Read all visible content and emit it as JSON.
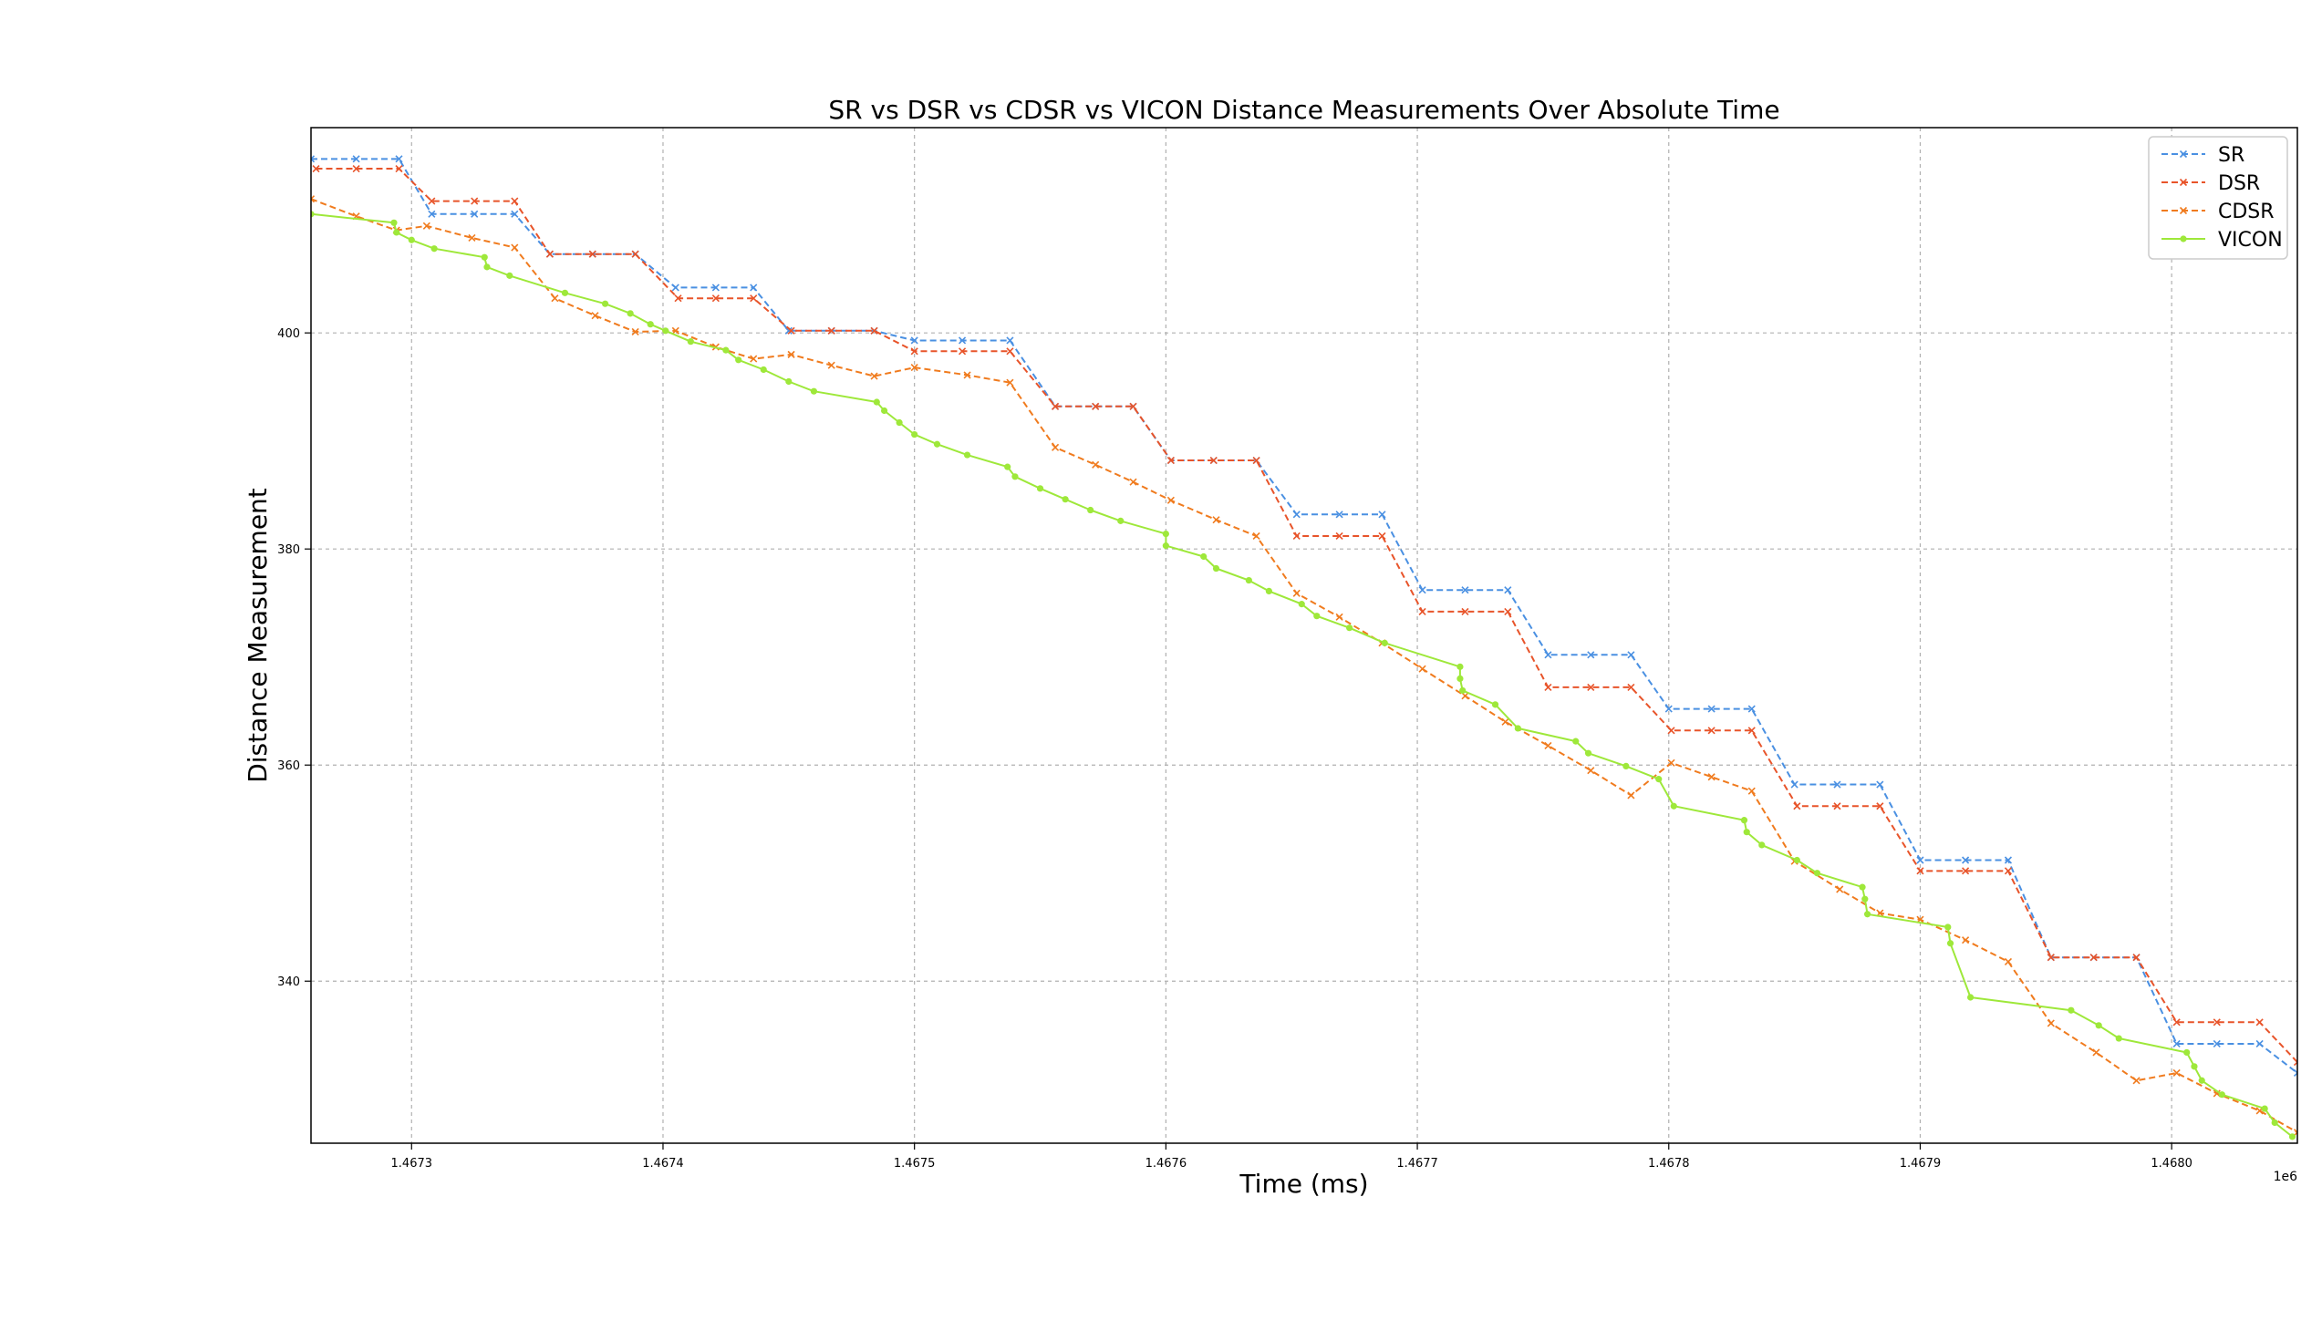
{
  "chart_data": {
    "type": "line",
    "title": "SR vs DSR vs CDSR vs VICON Distance Measurements Over Absolute Time",
    "xlabel": "Time (ms)",
    "ylabel": "Distance Measurement",
    "x_offset_label": "1e6",
    "xlim": [
      1.46726,
      1.46805
    ],
    "ylim": [
      325,
      419
    ],
    "x_ticks": [
      1.4673,
      1.4674,
      1.4675,
      1.4676,
      1.4677,
      1.4678,
      1.4679,
      1.468
    ],
    "x_tick_labels": [
      "1.4673",
      "1.4674",
      "1.4675",
      "1.4676",
      "1.4677",
      "1.4678",
      "1.4679",
      "1.4680"
    ],
    "y_ticks": [
      340,
      360,
      380,
      400
    ],
    "y_tick_labels": [
      "340",
      "360",
      "380",
      "400"
    ],
    "grid": true,
    "legend_position": "top-right",
    "series": [
      {
        "name": "SR",
        "color": "#4a90e2",
        "linestyle": "dashed",
        "marker": "x",
        "points": [
          [
            1.46726,
            416.1
          ],
          [
            1.467278,
            416.1
          ],
          [
            1.467295,
            416.1
          ],
          [
            1.467308,
            411.0
          ],
          [
            1.467325,
            411.0
          ],
          [
            1.467341,
            411.0
          ],
          [
            1.467355,
            407.3
          ],
          [
            1.467372,
            407.3
          ],
          [
            1.467389,
            407.3
          ],
          [
            1.467405,
            404.2
          ],
          [
            1.467421,
            404.2
          ],
          [
            1.467436,
            404.2
          ],
          [
            1.46745,
            400.2
          ],
          [
            1.467467,
            400.2
          ],
          [
            1.467484,
            400.2
          ],
          [
            1.4675,
            399.3
          ],
          [
            1.467519,
            399.3
          ],
          [
            1.467538,
            399.3
          ],
          [
            1.467556,
            393.2
          ],
          [
            1.467572,
            393.2
          ],
          [
            1.467587,
            393.2
          ],
          [
            1.467602,
            388.2
          ],
          [
            1.467619,
            388.2
          ],
          [
            1.467636,
            388.2
          ],
          [
            1.467652,
            383.2
          ],
          [
            1.467669,
            383.2
          ],
          [
            1.467686,
            383.2
          ],
          [
            1.467702,
            376.2
          ],
          [
            1.467719,
            376.2
          ],
          [
            1.467736,
            376.2
          ],
          [
            1.467752,
            370.2
          ],
          [
            1.467769,
            370.2
          ],
          [
            1.467785,
            370.2
          ],
          [
            1.4678,
            365.2
          ],
          [
            1.467817,
            365.2
          ],
          [
            1.467833,
            365.2
          ],
          [
            1.46785,
            358.2
          ],
          [
            1.467867,
            358.2
          ],
          [
            1.467884,
            358.2
          ],
          [
            1.4679,
            351.2
          ],
          [
            1.467918,
            351.2
          ],
          [
            1.467935,
            351.2
          ],
          [
            1.467952,
            342.2
          ],
          [
            1.467969,
            342.2
          ],
          [
            1.467986,
            342.2
          ],
          [
            1.468002,
            334.2
          ],
          [
            1.468018,
            334.2
          ],
          [
            1.468035,
            334.2
          ],
          [
            1.46805,
            331.5
          ]
        ]
      },
      {
        "name": "DSR",
        "color": "#e8542a",
        "linestyle": "dashed",
        "marker": "x",
        "points": [
          [
            1.467262,
            415.2
          ],
          [
            1.467278,
            415.2
          ],
          [
            1.467295,
            415.2
          ],
          [
            1.467308,
            412.2
          ],
          [
            1.467325,
            412.2
          ],
          [
            1.467341,
            412.2
          ],
          [
            1.467355,
            407.3
          ],
          [
            1.467372,
            407.3
          ],
          [
            1.467389,
            407.3
          ],
          [
            1.467406,
            403.2
          ],
          [
            1.467421,
            403.2
          ],
          [
            1.467436,
            403.2
          ],
          [
            1.467451,
            400.2
          ],
          [
            1.467467,
            400.2
          ],
          [
            1.467484,
            400.2
          ],
          [
            1.4675,
            398.3
          ],
          [
            1.467519,
            398.3
          ],
          [
            1.467538,
            398.3
          ],
          [
            1.467556,
            393.2
          ],
          [
            1.467572,
            393.2
          ],
          [
            1.467587,
            393.2
          ],
          [
            1.467602,
            388.2
          ],
          [
            1.467619,
            388.2
          ],
          [
            1.467636,
            388.2
          ],
          [
            1.467652,
            381.2
          ],
          [
            1.467669,
            381.2
          ],
          [
            1.467686,
            381.2
          ],
          [
            1.467702,
            374.2
          ],
          [
            1.467719,
            374.2
          ],
          [
            1.467736,
            374.2
          ],
          [
            1.467752,
            367.2
          ],
          [
            1.467769,
            367.2
          ],
          [
            1.467785,
            367.2
          ],
          [
            1.467801,
            363.2
          ],
          [
            1.467817,
            363.2
          ],
          [
            1.467833,
            363.2
          ],
          [
            1.467851,
            356.2
          ],
          [
            1.467867,
            356.2
          ],
          [
            1.467884,
            356.2
          ],
          [
            1.4679,
            350.2
          ],
          [
            1.467918,
            350.2
          ],
          [
            1.467935,
            350.2
          ],
          [
            1.467952,
            342.2
          ],
          [
            1.467969,
            342.2
          ],
          [
            1.467986,
            342.2
          ],
          [
            1.468002,
            336.2
          ],
          [
            1.468018,
            336.2
          ],
          [
            1.468035,
            336.2
          ],
          [
            1.46805,
            332.5
          ]
        ]
      },
      {
        "name": "CDSR",
        "color": "#f07b1e",
        "linestyle": "dashed",
        "marker": "x",
        "points": [
          [
            1.46726,
            412.4
          ],
          [
            1.467278,
            410.8
          ],
          [
            1.467294,
            409.5
          ],
          [
            1.467306,
            409.9
          ],
          [
            1.467324,
            408.8
          ],
          [
            1.467341,
            407.9
          ],
          [
            1.467357,
            403.2
          ],
          [
            1.467373,
            401.6
          ],
          [
            1.467389,
            400.1
          ],
          [
            1.467405,
            400.2
          ],
          [
            1.467421,
            398.7
          ],
          [
            1.467436,
            397.6
          ],
          [
            1.467451,
            398.0
          ],
          [
            1.467467,
            397.0
          ],
          [
            1.467484,
            396.0
          ],
          [
            1.4675,
            396.8
          ],
          [
            1.467521,
            396.1
          ],
          [
            1.467538,
            395.4
          ],
          [
            1.467556,
            389.4
          ],
          [
            1.467572,
            387.8
          ],
          [
            1.467587,
            386.2
          ],
          [
            1.467602,
            384.5
          ],
          [
            1.46762,
            382.7
          ],
          [
            1.467636,
            381.2
          ],
          [
            1.467652,
            375.9
          ],
          [
            1.467669,
            373.7
          ],
          [
            1.467686,
            371.3
          ],
          [
            1.467702,
            368.9
          ],
          [
            1.467719,
            366.4
          ],
          [
            1.467735,
            364.0
          ],
          [
            1.467752,
            361.8
          ],
          [
            1.467769,
            359.5
          ],
          [
            1.467785,
            357.2
          ],
          [
            1.467801,
            360.2
          ],
          [
            1.467817,
            358.9
          ],
          [
            1.467833,
            357.6
          ],
          [
            1.46785,
            351.1
          ],
          [
            1.467868,
            348.5
          ],
          [
            1.467884,
            346.3
          ],
          [
            1.4679,
            345.7
          ],
          [
            1.467918,
            343.8
          ],
          [
            1.467935,
            341.8
          ],
          [
            1.467952,
            336.1
          ],
          [
            1.46797,
            333.4
          ],
          [
            1.467986,
            330.8
          ],
          [
            1.468002,
            331.5
          ],
          [
            1.468018,
            329.6
          ],
          [
            1.468035,
            328.0
          ],
          [
            1.46805,
            326.0
          ]
        ]
      },
      {
        "name": "VICON",
        "color": "#9ee83a",
        "linestyle": "solid",
        "marker": "o",
        "points": [
          [
            1.46726,
            411.0
          ],
          [
            1.467293,
            410.2
          ],
          [
            1.467294,
            409.3
          ],
          [
            1.4673,
            408.6
          ],
          [
            1.467309,
            407.8
          ],
          [
            1.467329,
            407.0
          ],
          [
            1.46733,
            406.1
          ],
          [
            1.467339,
            405.3
          ],
          [
            1.467361,
            403.7
          ],
          [
            1.467377,
            402.7
          ],
          [
            1.467387,
            401.8
          ],
          [
            1.467395,
            400.8
          ],
          [
            1.467401,
            400.2
          ],
          [
            1.467411,
            399.2
          ],
          [
            1.467425,
            398.4
          ],
          [
            1.46743,
            397.5
          ],
          [
            1.46744,
            396.6
          ],
          [
            1.46745,
            395.5
          ],
          [
            1.46746,
            394.6
          ],
          [
            1.467485,
            393.6
          ],
          [
            1.467488,
            392.8
          ],
          [
            1.467494,
            391.7
          ],
          [
            1.4675,
            390.6
          ],
          [
            1.467509,
            389.7
          ],
          [
            1.467521,
            388.7
          ],
          [
            1.467537,
            387.6
          ],
          [
            1.46754,
            386.7
          ],
          [
            1.46755,
            385.6
          ],
          [
            1.46756,
            384.6
          ],
          [
            1.46757,
            383.6
          ],
          [
            1.467582,
            382.6
          ],
          [
            1.4676,
            381.4
          ],
          [
            1.4676,
            380.3
          ],
          [
            1.467615,
            379.3
          ],
          [
            1.46762,
            378.2
          ],
          [
            1.467633,
            377.1
          ],
          [
            1.467641,
            376.1
          ],
          [
            1.467654,
            374.9
          ],
          [
            1.46766,
            373.8
          ],
          [
            1.467673,
            372.7
          ],
          [
            1.467687,
            371.3
          ],
          [
            1.467717,
            369.1
          ],
          [
            1.467717,
            368.0
          ],
          [
            1.467718,
            366.9
          ],
          [
            1.467731,
            365.6
          ],
          [
            1.46774,
            363.4
          ],
          [
            1.467763,
            362.2
          ],
          [
            1.467768,
            361.1
          ],
          [
            1.467783,
            359.9
          ],
          [
            1.467796,
            358.7
          ],
          [
            1.467802,
            356.2
          ],
          [
            1.46783,
            354.9
          ],
          [
            1.467831,
            353.8
          ],
          [
            1.467837,
            352.6
          ],
          [
            1.467851,
            351.2
          ],
          [
            1.467859,
            350.0
          ],
          [
            1.467877,
            348.7
          ],
          [
            1.467878,
            347.6
          ],
          [
            1.467879,
            346.2
          ],
          [
            1.467911,
            345.0
          ],
          [
            1.467912,
            343.5
          ],
          [
            1.46792,
            338.5
          ],
          [
            1.46796,
            337.3
          ],
          [
            1.467971,
            335.9
          ],
          [
            1.467979,
            334.7
          ],
          [
            1.468006,
            333.4
          ],
          [
            1.468009,
            332.1
          ],
          [
            1.468012,
            330.8
          ],
          [
            1.46802,
            329.5
          ],
          [
            1.468037,
            328.2
          ],
          [
            1.468041,
            326.9
          ],
          [
            1.468048,
            325.6
          ]
        ]
      }
    ]
  }
}
